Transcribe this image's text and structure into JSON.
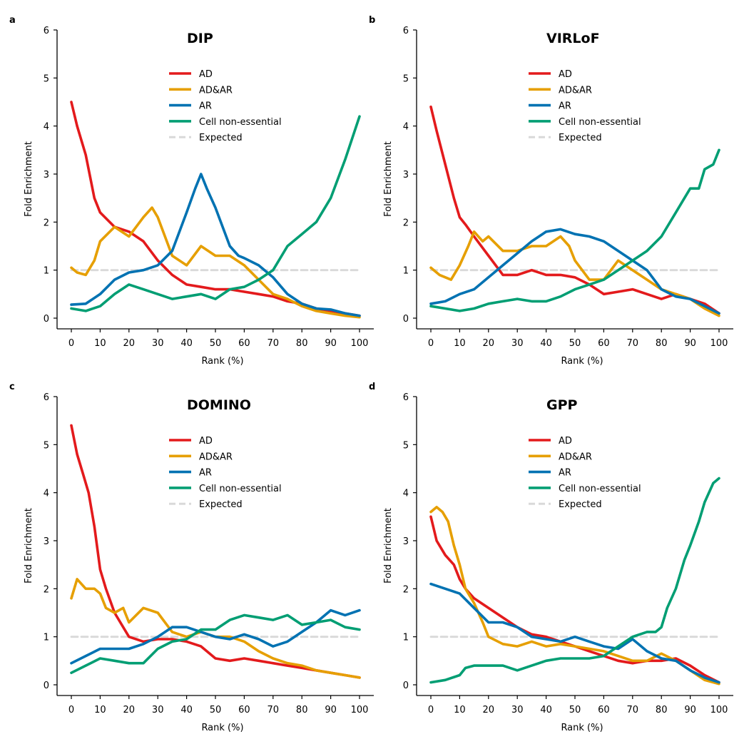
{
  "colors": {
    "AD": "#e31a1c",
    "AD&AR": "#e69f00",
    "AR": "#0072b2",
    "Cell non-essential": "#009e73",
    "Expected": "#d9d9d9"
  },
  "chart_data": [
    {
      "panel": "a",
      "title": "DIP",
      "type": "line",
      "xlabel": "Rank (%)",
      "ylabel": "Fold Enrichment",
      "xlim": [
        0,
        100
      ],
      "ylim": [
        0,
        6
      ],
      "xticks": [
        0,
        10,
        20,
        30,
        40,
        50,
        60,
        70,
        80,
        90,
        100
      ],
      "yticks": [
        0,
        1,
        2,
        3,
        4,
        5,
        6
      ],
      "grid": false,
      "legend_placement": "top-center",
      "series": [
        {
          "name": "AD",
          "x": [
            0,
            2,
            5,
            8,
            10,
            15,
            20,
            25,
            30,
            35,
            40,
            45,
            50,
            55,
            60,
            65,
            70,
            75,
            80,
            85,
            90,
            95,
            100
          ],
          "y": [
            4.5,
            4.0,
            3.4,
            2.5,
            2.2,
            1.9,
            1.8,
            1.6,
            1.2,
            0.9,
            0.7,
            0.65,
            0.6,
            0.6,
            0.55,
            0.5,
            0.45,
            0.35,
            0.3,
            0.2,
            0.15,
            0.1,
            0.05
          ]
        },
        {
          "name": "AD&AR",
          "x": [
            0,
            2,
            5,
            8,
            10,
            15,
            20,
            25,
            28,
            30,
            35,
            40,
            45,
            50,
            55,
            60,
            65,
            70,
            75,
            80,
            85,
            90,
            95,
            100
          ],
          "y": [
            1.05,
            0.95,
            0.9,
            1.2,
            1.6,
            1.9,
            1.7,
            2.1,
            2.3,
            2.1,
            1.3,
            1.1,
            1.5,
            1.3,
            1.3,
            1.1,
            0.8,
            0.5,
            0.4,
            0.25,
            0.15,
            0.1,
            0.05,
            0.02
          ]
        },
        {
          "name": "AR",
          "x": [
            0,
            5,
            10,
            15,
            20,
            25,
            30,
            35,
            40,
            43,
            45,
            47,
            50,
            55,
            58,
            60,
            65,
            70,
            75,
            80,
            85,
            90,
            95,
            100
          ],
          "y": [
            0.28,
            0.3,
            0.5,
            0.8,
            0.95,
            1.0,
            1.1,
            1.4,
            2.2,
            2.7,
            3.0,
            2.7,
            2.3,
            1.5,
            1.3,
            1.25,
            1.1,
            0.85,
            0.5,
            0.3,
            0.2,
            0.18,
            0.1,
            0.05
          ]
        },
        {
          "name": "Cell non-essential",
          "x": [
            0,
            5,
            10,
            15,
            20,
            25,
            30,
            35,
            40,
            45,
            50,
            55,
            60,
            65,
            70,
            75,
            80,
            85,
            90,
            95,
            100
          ],
          "y": [
            0.2,
            0.15,
            0.25,
            0.5,
            0.7,
            0.6,
            0.5,
            0.4,
            0.45,
            0.5,
            0.4,
            0.6,
            0.65,
            0.8,
            1.0,
            1.5,
            1.75,
            2.0,
            2.5,
            3.3,
            4.2
          ]
        },
        {
          "name": "Expected",
          "x": [
            0,
            100
          ],
          "y": [
            1,
            1
          ]
        }
      ]
    },
    {
      "panel": "b",
      "title": "VIRLoF",
      "type": "line",
      "xlabel": "Rank (%)",
      "ylabel": "Fold Enrichment",
      "xlim": [
        0,
        100
      ],
      "ylim": [
        0,
        6
      ],
      "xticks": [
        0,
        10,
        20,
        30,
        40,
        50,
        60,
        70,
        80,
        90,
        100
      ],
      "yticks": [
        0,
        1,
        2,
        3,
        4,
        5,
        6
      ],
      "grid": false,
      "legend_placement": "top-center",
      "series": [
        {
          "name": "AD",
          "x": [
            0,
            2,
            5,
            8,
            10,
            12,
            15,
            20,
            25,
            30,
            35,
            40,
            45,
            50,
            55,
            60,
            65,
            70,
            75,
            80,
            85,
            90,
            95,
            100
          ],
          "y": [
            4.4,
            3.9,
            3.2,
            2.5,
            2.1,
            1.95,
            1.7,
            1.3,
            0.9,
            0.9,
            1.0,
            0.9,
            0.9,
            0.85,
            0.7,
            0.5,
            0.55,
            0.6,
            0.5,
            0.4,
            0.5,
            0.4,
            0.3,
            0.1
          ]
        },
        {
          "name": "AD&AR",
          "x": [
            0,
            3,
            7,
            10,
            13,
            15,
            18,
            20,
            25,
            30,
            35,
            40,
            45,
            48,
            50,
            55,
            60,
            65,
            70,
            75,
            80,
            85,
            90,
            95,
            100
          ],
          "y": [
            1.05,
            0.9,
            0.8,
            1.1,
            1.5,
            1.8,
            1.6,
            1.7,
            1.4,
            1.4,
            1.5,
            1.5,
            1.7,
            1.5,
            1.2,
            0.8,
            0.8,
            1.2,
            1.0,
            0.8,
            0.6,
            0.5,
            0.4,
            0.2,
            0.05
          ]
        },
        {
          "name": "AR",
          "x": [
            0,
            5,
            10,
            15,
            20,
            25,
            30,
            35,
            40,
            45,
            50,
            55,
            60,
            65,
            70,
            75,
            80,
            85,
            90,
            95,
            100
          ],
          "y": [
            0.3,
            0.35,
            0.5,
            0.6,
            0.85,
            1.1,
            1.35,
            1.6,
            1.8,
            1.85,
            1.75,
            1.7,
            1.6,
            1.4,
            1.2,
            1.0,
            0.6,
            0.45,
            0.4,
            0.25,
            0.1
          ]
        },
        {
          "name": "Cell non-essential",
          "x": [
            0,
            5,
            10,
            15,
            20,
            25,
            30,
            35,
            40,
            45,
            50,
            55,
            60,
            65,
            70,
            75,
            80,
            85,
            88,
            90,
            93,
            95,
            98,
            100
          ],
          "y": [
            0.25,
            0.2,
            0.15,
            0.2,
            0.3,
            0.35,
            0.4,
            0.35,
            0.35,
            0.45,
            0.6,
            0.7,
            0.8,
            1.0,
            1.2,
            1.4,
            1.7,
            2.2,
            2.5,
            2.7,
            2.7,
            3.1,
            3.2,
            3.5
          ]
        },
        {
          "name": "Expected",
          "x": [
            0,
            100
          ],
          "y": [
            1,
            1
          ]
        }
      ]
    },
    {
      "panel": "c",
      "title": "DOMINO",
      "type": "line",
      "xlabel": "Rank (%)",
      "ylabel": "Fold Enrichment",
      "xlim": [
        0,
        100
      ],
      "ylim": [
        0,
        6
      ],
      "xticks": [
        0,
        10,
        20,
        30,
        40,
        50,
        60,
        70,
        80,
        90,
        100
      ],
      "yticks": [
        0,
        1,
        2,
        3,
        4,
        5,
        6
      ],
      "grid": false,
      "legend_placement": "top-center",
      "series": [
        {
          "name": "AD",
          "x": [
            0,
            2,
            4,
            6,
            8,
            10,
            12,
            15,
            20,
            25,
            30,
            35,
            40,
            45,
            50,
            55,
            60,
            65,
            70,
            75,
            80,
            85,
            90,
            95,
            100
          ],
          "y": [
            5.4,
            4.8,
            4.4,
            4.0,
            3.3,
            2.4,
            2.0,
            1.5,
            1.0,
            0.9,
            0.95,
            0.95,
            0.9,
            0.8,
            0.55,
            0.5,
            0.55,
            0.5,
            0.45,
            0.4,
            0.35,
            0.3,
            0.25,
            0.2,
            0.15
          ]
        },
        {
          "name": "AD&AR",
          "x": [
            0,
            2,
            5,
            8,
            10,
            12,
            15,
            18,
            20,
            25,
            30,
            35,
            40,
            45,
            50,
            55,
            60,
            65,
            70,
            75,
            80,
            85,
            90,
            95,
            100
          ],
          "y": [
            1.8,
            2.2,
            2.0,
            2.0,
            1.9,
            1.6,
            1.5,
            1.6,
            1.3,
            1.6,
            1.5,
            1.1,
            1.0,
            1.1,
            1.0,
            1.0,
            0.9,
            0.7,
            0.55,
            0.45,
            0.4,
            0.3,
            0.25,
            0.2,
            0.15
          ]
        },
        {
          "name": "AR",
          "x": [
            0,
            5,
            10,
            15,
            20,
            25,
            30,
            35,
            40,
            45,
            50,
            55,
            60,
            65,
            70,
            75,
            80,
            85,
            90,
            95,
            100
          ],
          "y": [
            0.45,
            0.6,
            0.75,
            0.75,
            0.75,
            0.85,
            1.0,
            1.2,
            1.2,
            1.1,
            1.0,
            0.95,
            1.05,
            0.95,
            0.8,
            0.9,
            1.1,
            1.3,
            1.55,
            1.45,
            1.55
          ]
        },
        {
          "name": "Cell non-essential",
          "x": [
            0,
            5,
            10,
            15,
            20,
            25,
            30,
            35,
            40,
            45,
            50,
            55,
            60,
            65,
            70,
            75,
            80,
            85,
            90,
            95,
            100
          ],
          "y": [
            0.25,
            0.4,
            0.55,
            0.5,
            0.45,
            0.45,
            0.75,
            0.9,
            0.95,
            1.15,
            1.15,
            1.35,
            1.45,
            1.4,
            1.35,
            1.45,
            1.25,
            1.3,
            1.35,
            1.2,
            1.15
          ]
        },
        {
          "name": "Expected",
          "x": [
            0,
            100
          ],
          "y": [
            1,
            1
          ]
        }
      ]
    },
    {
      "panel": "d",
      "title": "GPP",
      "type": "line",
      "xlabel": "Rank (%)",
      "ylabel": "Fold Enrichment",
      "xlim": [
        0,
        100
      ],
      "ylim": [
        0,
        6
      ],
      "xticks": [
        0,
        10,
        20,
        30,
        40,
        50,
        60,
        70,
        80,
        90,
        100
      ],
      "yticks": [
        0,
        1,
        2,
        3,
        4,
        5,
        6
      ],
      "grid": false,
      "legend_placement": "top-center",
      "series": [
        {
          "name": "AD",
          "x": [
            0,
            2,
            5,
            8,
            10,
            12,
            15,
            20,
            25,
            30,
            35,
            40,
            45,
            50,
            55,
            60,
            65,
            70,
            75,
            80,
            85,
            90,
            95,
            100
          ],
          "y": [
            3.5,
            3.0,
            2.7,
            2.5,
            2.2,
            2.0,
            1.8,
            1.6,
            1.4,
            1.2,
            1.05,
            1.0,
            0.9,
            0.8,
            0.7,
            0.6,
            0.5,
            0.45,
            0.5,
            0.5,
            0.55,
            0.4,
            0.2,
            0.05
          ]
        },
        {
          "name": "AD&AR",
          "x": [
            0,
            2,
            4,
            6,
            8,
            10,
            12,
            15,
            18,
            20,
            25,
            30,
            35,
            40,
            45,
            50,
            55,
            60,
            65,
            70,
            75,
            80,
            85,
            90,
            95,
            100
          ],
          "y": [
            3.6,
            3.7,
            3.6,
            3.4,
            2.9,
            2.5,
            2.0,
            1.7,
            1.3,
            1.0,
            0.85,
            0.8,
            0.9,
            0.8,
            0.85,
            0.8,
            0.75,
            0.7,
            0.6,
            0.5,
            0.5,
            0.65,
            0.5,
            0.3,
            0.1,
            0.02
          ]
        },
        {
          "name": "AR",
          "x": [
            0,
            5,
            10,
            15,
            20,
            25,
            30,
            35,
            40,
            45,
            50,
            55,
            60,
            65,
            70,
            75,
            80,
            85,
            90,
            95,
            100
          ],
          "y": [
            2.1,
            2.0,
            1.9,
            1.6,
            1.3,
            1.3,
            1.2,
            1.0,
            0.95,
            0.9,
            1.0,
            0.9,
            0.8,
            0.75,
            0.95,
            0.7,
            0.55,
            0.5,
            0.3,
            0.15,
            0.05
          ]
        },
        {
          "name": "Cell non-essential",
          "x": [
            0,
            5,
            10,
            12,
            15,
            20,
            25,
            30,
            35,
            40,
            45,
            50,
            55,
            60,
            65,
            70,
            75,
            78,
            80,
            82,
            85,
            88,
            90,
            93,
            95,
            98,
            100
          ],
          "y": [
            0.05,
            0.1,
            0.2,
            0.35,
            0.4,
            0.4,
            0.4,
            0.3,
            0.4,
            0.5,
            0.55,
            0.55,
            0.55,
            0.6,
            0.8,
            1.0,
            1.1,
            1.1,
            1.2,
            1.6,
            2.0,
            2.6,
            2.9,
            3.4,
            3.8,
            4.2,
            4.3
          ]
        },
        {
          "name": "Expected",
          "x": [
            0,
            100
          ],
          "y": [
            1,
            1
          ]
        }
      ]
    }
  ]
}
